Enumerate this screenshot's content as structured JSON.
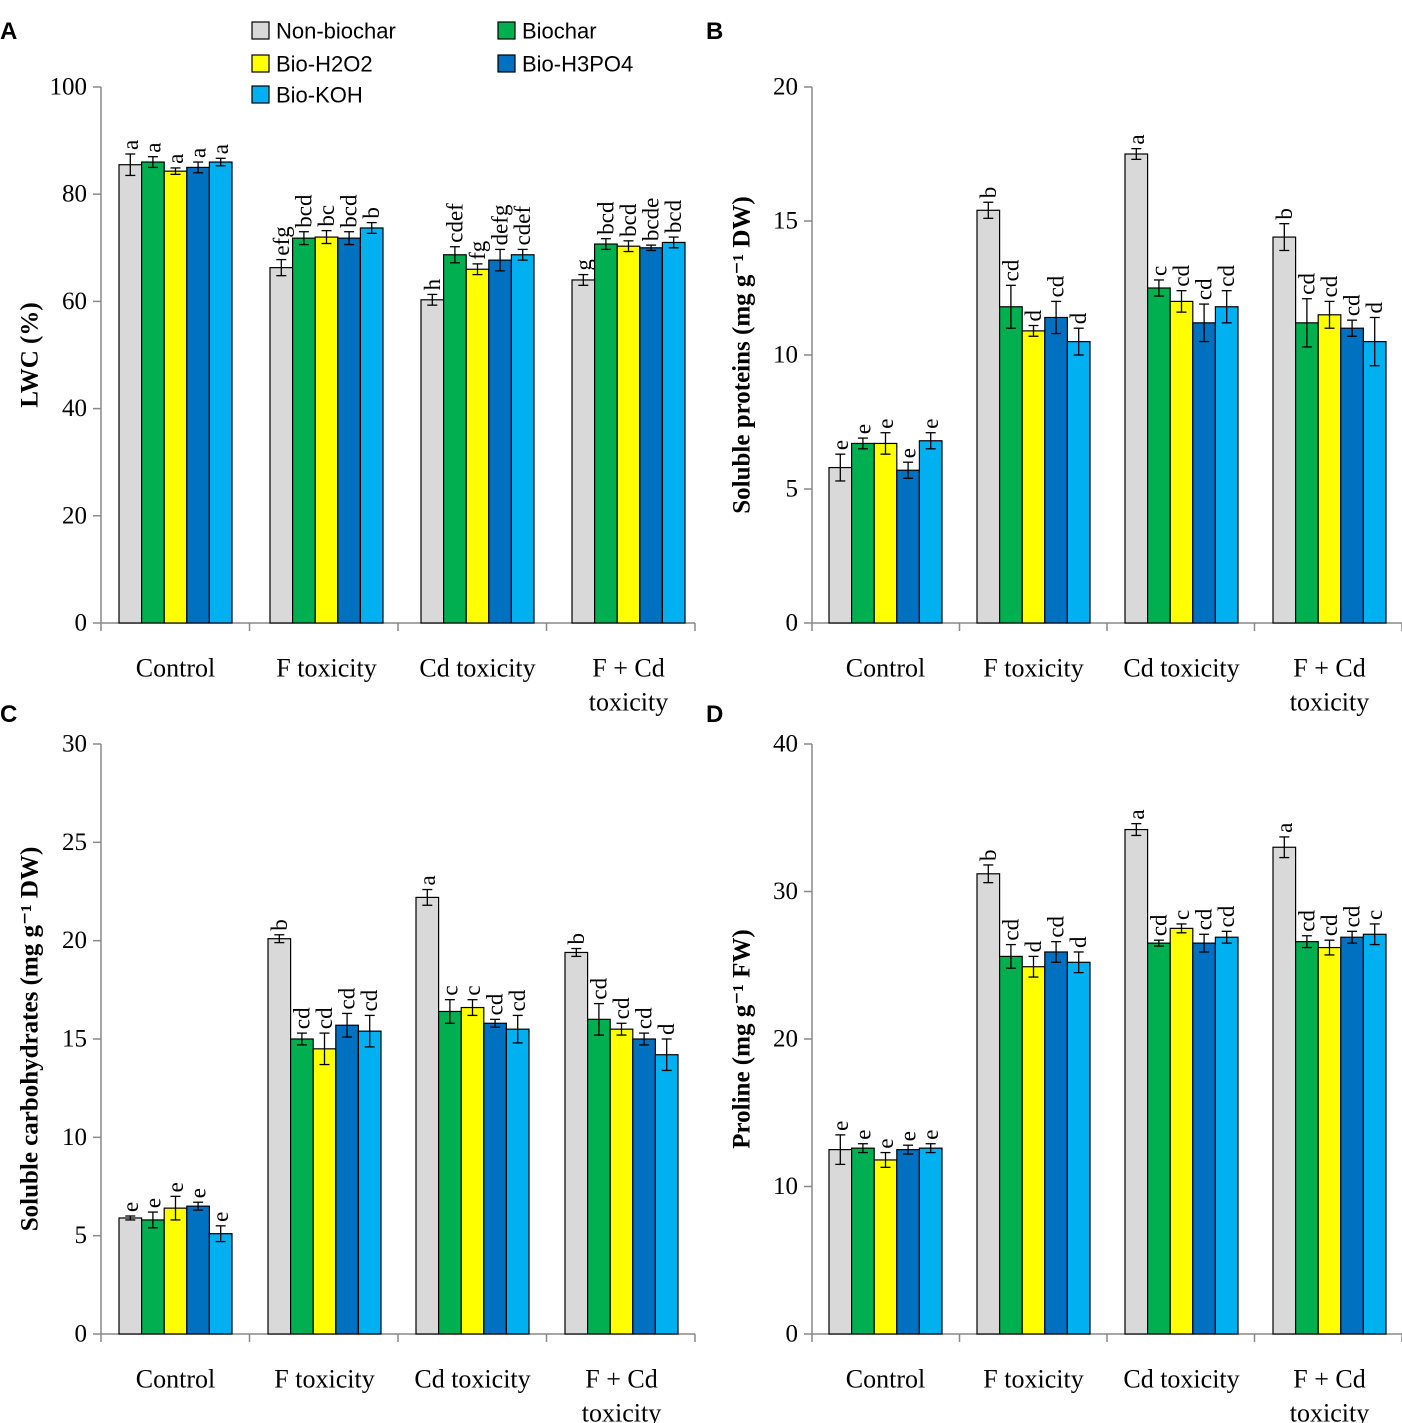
{
  "legend": [
    {
      "name": "Non-biochar",
      "color": "#d9d9d9"
    },
    {
      "name": "Biochar",
      "color": "#00b050"
    },
    {
      "name": "Bio-H2O2",
      "color": "#ffff00"
    },
    {
      "name": "Bio-H3PO4",
      "color": "#0070c0"
    },
    {
      "name": "Bio-KOH",
      "color": "#00b0f0"
    }
  ],
  "chart_data": [
    {
      "panel": "A",
      "type": "bar",
      "ylabel": "LWC (%)",
      "ylim": [
        0,
        100
      ],
      "yticks": [
        0,
        20,
        40,
        60,
        80,
        100
      ],
      "categories": [
        [
          "Control"
        ],
        [
          "F toxicity"
        ],
        [
          "Cd toxicity"
        ],
        [
          "F + Cd",
          "toxicity"
        ]
      ],
      "series": [
        {
          "name": "Non-biochar",
          "values": [
            85.5,
            66.3,
            60.3,
            64.0
          ],
          "errors": [
            2.0,
            1.5,
            1.0,
            1.0
          ],
          "letters": [
            "a",
            "efg",
            "h",
            "g"
          ]
        },
        {
          "name": "Biochar",
          "values": [
            86.0,
            71.8,
            68.7,
            70.7
          ],
          "errors": [
            1.0,
            1.2,
            1.5,
            1.0
          ],
          "letters": [
            "a",
            "bcd",
            "cdef",
            "bcd"
          ]
        },
        {
          "name": "Bio-H2O2",
          "values": [
            84.3,
            72.0,
            66.0,
            70.3
          ],
          "errors": [
            0.6,
            1.2,
            1.0,
            1.0
          ],
          "letters": [
            "a",
            "bc",
            "fg",
            "bcd"
          ]
        },
        {
          "name": "Bio-H3PO4",
          "values": [
            85.0,
            71.8,
            67.7,
            70.0
          ],
          "errors": [
            1.0,
            1.2,
            2.0,
            0.5
          ],
          "letters": [
            "a",
            "bcd",
            "defg",
            "bcde"
          ]
        },
        {
          "name": "Bio-KOH",
          "values": [
            86.0,
            73.7,
            68.7,
            71.0
          ],
          "errors": [
            0.7,
            1.0,
            1.0,
            1.0
          ],
          "letters": [
            "a",
            "b",
            "cdef",
            "bcd"
          ]
        }
      ]
    },
    {
      "panel": "B",
      "type": "bar",
      "ylabel": "Soluble proteins (mg g⁻¹ DW)",
      "ylim": [
        0,
        20
      ],
      "yticks": [
        0,
        5,
        10,
        15,
        20
      ],
      "categories": [
        [
          "Control"
        ],
        [
          "F toxicity"
        ],
        [
          "Cd toxicity"
        ],
        [
          "F + Cd",
          "toxicity"
        ]
      ],
      "series": [
        {
          "name": "Non-biochar",
          "values": [
            5.8,
            15.4,
            17.5,
            14.4
          ],
          "errors": [
            0.5,
            0.3,
            0.2,
            0.5
          ],
          "letters": [
            "e",
            "b",
            "a",
            "b"
          ]
        },
        {
          "name": "Biochar",
          "values": [
            6.7,
            11.8,
            12.5,
            11.2
          ],
          "errors": [
            0.2,
            0.8,
            0.3,
            0.9
          ],
          "letters": [
            "e",
            "cd",
            "c",
            "cd"
          ]
        },
        {
          "name": "Bio-H2O2",
          "values": [
            6.7,
            10.9,
            12.0,
            11.5
          ],
          "errors": [
            0.4,
            0.2,
            0.4,
            0.5
          ],
          "letters": [
            "e",
            "d",
            "cd",
            "cd"
          ]
        },
        {
          "name": "Bio-H3PO4",
          "values": [
            5.7,
            11.4,
            11.2,
            11.0
          ],
          "errors": [
            0.3,
            0.6,
            0.7,
            0.3
          ],
          "letters": [
            "e",
            "cd",
            "cd",
            "cd"
          ]
        },
        {
          "name": "Bio-KOH",
          "values": [
            6.8,
            10.5,
            11.8,
            10.5
          ],
          "errors": [
            0.3,
            0.5,
            0.6,
            0.9
          ],
          "letters": [
            "e",
            "d",
            "cd",
            "d"
          ]
        }
      ]
    },
    {
      "panel": "C",
      "type": "bar",
      "ylabel": "Soluble carbohydrates (mg g⁻¹ DW)",
      "ylim": [
        0,
        30
      ],
      "yticks": [
        0,
        5,
        10,
        15,
        20,
        25,
        30
      ],
      "categories": [
        [
          "Control"
        ],
        [
          "F toxicity"
        ],
        [
          "Cd toxicity"
        ],
        [
          "F + Cd",
          "toxicity"
        ]
      ],
      "series": [
        {
          "name": "Non-biochar",
          "values": [
            5.9,
            20.1,
            22.2,
            19.4
          ],
          "errors": [
            0.1,
            0.2,
            0.4,
            0.2
          ],
          "letters": [
            "e",
            "b",
            "a",
            "b"
          ]
        },
        {
          "name": "Biochar",
          "values": [
            5.8,
            15.0,
            16.4,
            16.0
          ],
          "errors": [
            0.4,
            0.3,
            0.6,
            0.8
          ],
          "letters": [
            "e",
            "cd",
            "c",
            "cd"
          ]
        },
        {
          "name": "Bio-H2O2",
          "values": [
            6.4,
            14.5,
            16.6,
            15.5
          ],
          "errors": [
            0.6,
            0.8,
            0.4,
            0.3
          ],
          "letters": [
            "e",
            "cd",
            "c",
            "cd"
          ]
        },
        {
          "name": "Bio-H3PO4",
          "values": [
            6.5,
            15.7,
            15.8,
            15.0
          ],
          "errors": [
            0.2,
            0.6,
            0.2,
            0.3
          ],
          "letters": [
            "e",
            "cd",
            "cd",
            "cd"
          ]
        },
        {
          "name": "Bio-KOH",
          "values": [
            5.1,
            15.4,
            15.5,
            14.2
          ],
          "errors": [
            0.4,
            0.8,
            0.7,
            0.8
          ],
          "letters": [
            "e",
            "cd",
            "cd",
            "d"
          ]
        }
      ]
    },
    {
      "panel": "D",
      "type": "bar",
      "ylabel": "Proline (mg g⁻¹ FW)",
      "ylim": [
        0,
        40
      ],
      "yticks": [
        0,
        10,
        20,
        30,
        40
      ],
      "categories": [
        [
          "Control"
        ],
        [
          "F toxicity"
        ],
        [
          "Cd toxicity"
        ],
        [
          "F + Cd",
          "toxicity"
        ]
      ],
      "series": [
        {
          "name": "Non-biochar",
          "values": [
            12.5,
            31.2,
            34.2,
            33.0
          ],
          "errors": [
            1.0,
            0.6,
            0.4,
            0.7
          ],
          "letters": [
            "e",
            "b",
            "a",
            "a"
          ]
        },
        {
          "name": "Biochar",
          "values": [
            12.6,
            25.6,
            26.5,
            26.6
          ],
          "errors": [
            0.3,
            0.8,
            0.2,
            0.4
          ],
          "letters": [
            "e",
            "cd",
            "cd",
            "cd"
          ]
        },
        {
          "name": "Bio-H2O2",
          "values": [
            11.8,
            24.9,
            27.5,
            26.2
          ],
          "errors": [
            0.5,
            0.7,
            0.3,
            0.5
          ],
          "letters": [
            "e",
            "d",
            "c",
            "cd"
          ]
        },
        {
          "name": "Bio-H3PO4",
          "values": [
            12.5,
            25.9,
            26.5,
            26.9
          ],
          "errors": [
            0.3,
            0.7,
            0.6,
            0.4
          ],
          "letters": [
            "e",
            "cd",
            "cd",
            "cd"
          ]
        },
        {
          "name": "Bio-KOH",
          "values": [
            12.6,
            25.2,
            26.9,
            27.1
          ],
          "errors": [
            0.3,
            0.7,
            0.4,
            0.7
          ],
          "letters": [
            "e",
            "d",
            "cd",
            "c"
          ]
        }
      ]
    }
  ]
}
